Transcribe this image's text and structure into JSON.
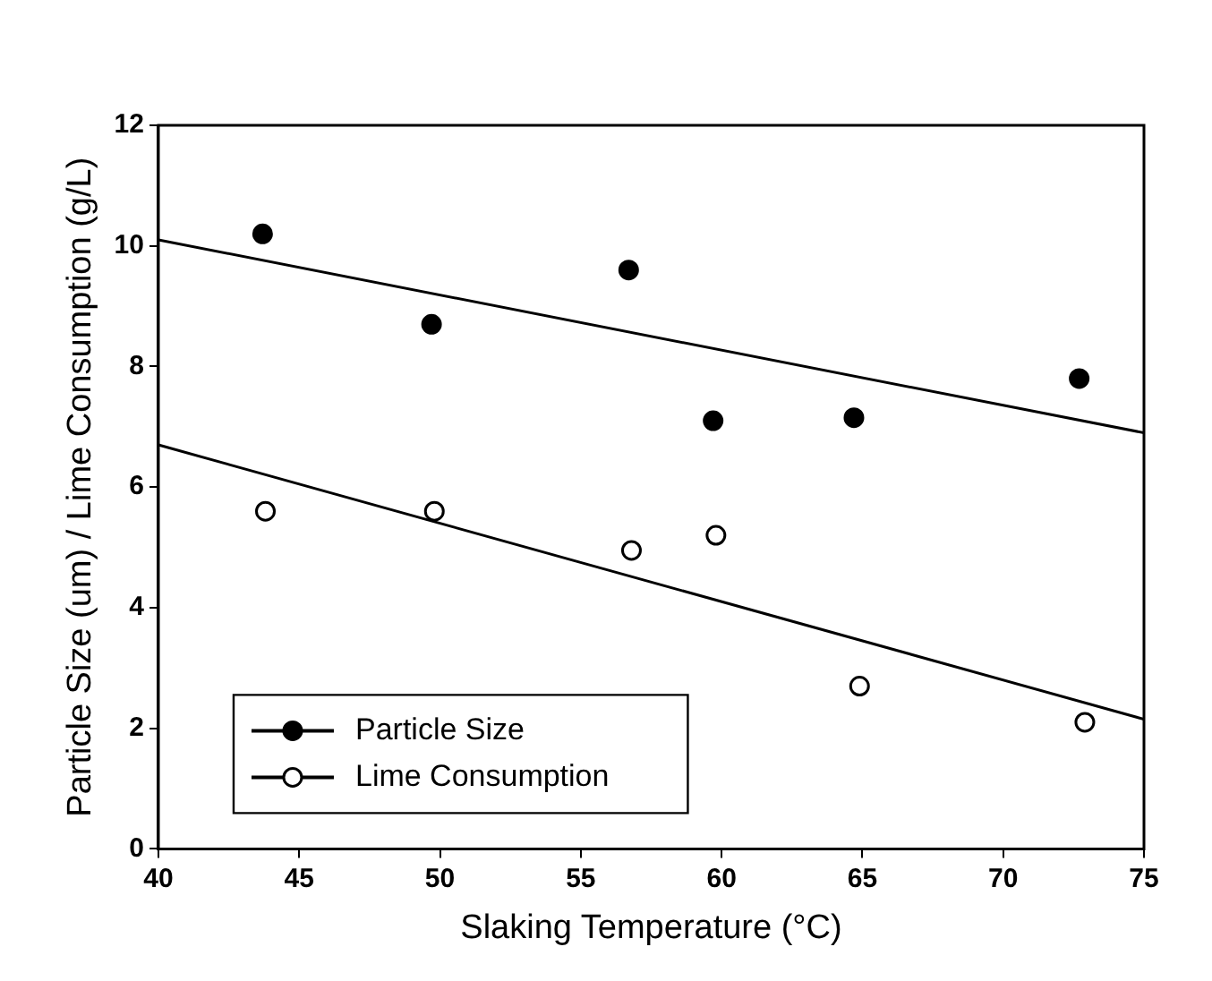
{
  "chart_data": {
    "type": "scatter",
    "xlabel": "Slaking Temperature (°C)",
    "ylabel": "Particle Size (um) / Lime Consumption (g/L)",
    "xlim": [
      40,
      75
    ],
    "xticks": [
      40,
      45,
      50,
      55,
      60,
      65,
      70,
      75
    ],
    "ylim": [
      0,
      12
    ],
    "yticks": [
      0,
      2,
      4,
      6,
      8,
      10,
      12
    ],
    "grid": false,
    "legend": "bottom left",
    "marker": "circle",
    "series": [
      {
        "name": "Particle Size",
        "color": "#000000",
        "x": [
          43.7,
          49.7,
          56.7,
          59.7,
          64.7,
          72.7
        ],
        "values": [
          10.2,
          8.7,
          9.6,
          7.1,
          7.15,
          7.8
        ]
      },
      {
        "name": "Lime Consumption",
        "color": "#000000",
        "x": [
          43.8,
          49.8,
          56.8,
          59.8,
          64.9,
          72.9
        ],
        "values": [
          5.6,
          5.6,
          4.95,
          5.2,
          2.7,
          2.1
        ]
      },
      {
        "type": "line",
        "color": "#000000",
        "x": [
          40,
          75
        ],
        "values": [
          10.1,
          6.9
        ],
        "marker": "none",
        "line_style": "solid"
      },
      {
        "type": "line",
        "color": "#000000",
        "x": [
          40,
          75
        ],
        "values": [
          6.7,
          2.15
        ],
        "marker": "none",
        "line_style": "solid"
      }
    ]
  }
}
